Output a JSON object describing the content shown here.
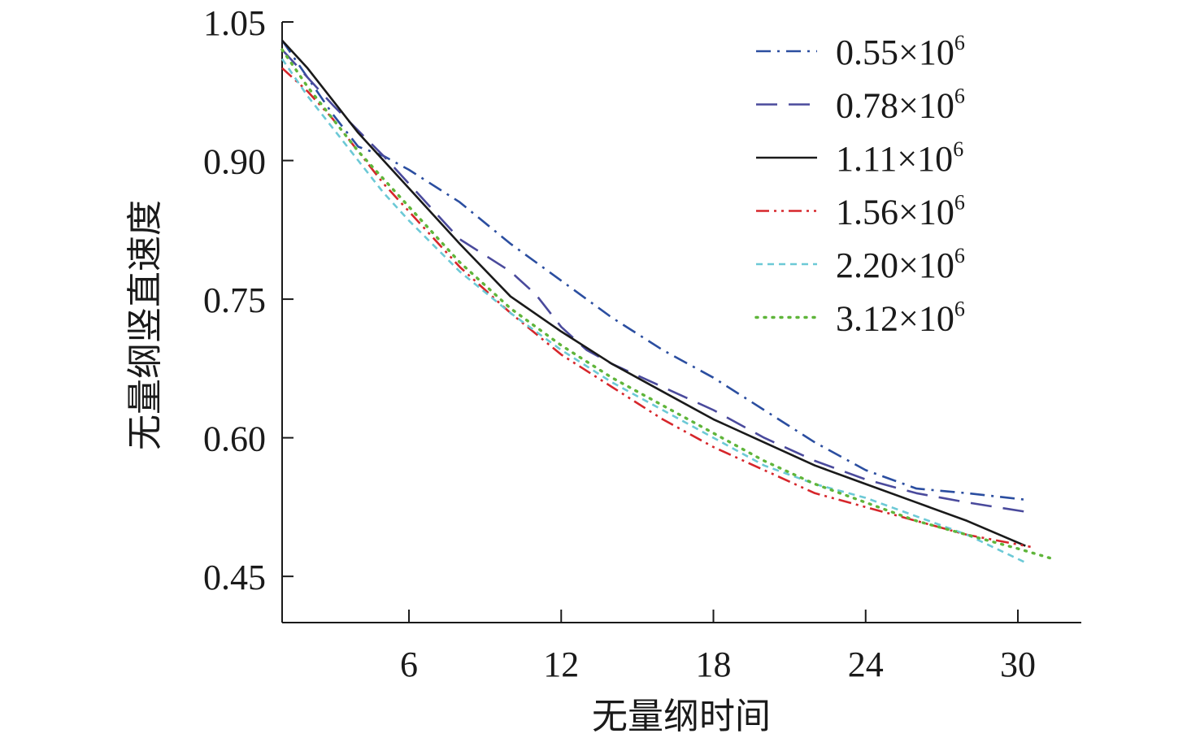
{
  "chart_data": {
    "type": "line",
    "title": "",
    "xlabel": "无量纲时间",
    "ylabel": "无量纲竖直速度",
    "xlim": [
      1,
      32.5
    ],
    "ylim": [
      0.4,
      1.05
    ],
    "xticks": [
      6,
      12,
      18,
      24,
      30
    ],
    "xtick_labels": [
      "6",
      "12",
      "18",
      "24",
      "30"
    ],
    "yticks": [
      0.45,
      0.6,
      0.75,
      0.9,
      1.05
    ],
    "ytick_labels": [
      "0.45",
      "0.60",
      "0.75",
      "0.90",
      "1.05"
    ],
    "grid": false,
    "legend_position": "top-right",
    "series": [
      {
        "name": "0.55×10⁶",
        "label_base": "0.55×10",
        "label_exp": "6",
        "color": "#2b4ea0",
        "style": "dashdot",
        "x": [
          1.0,
          3.0,
          4.0,
          5.0,
          6.0,
          8.0,
          10.0,
          12.0,
          14.0,
          16.0,
          18.0,
          20.0,
          22.0,
          24.0,
          26.0,
          28.0,
          30.3
        ],
        "y": [
          1.03,
          0.95,
          0.915,
          0.905,
          0.89,
          0.855,
          0.81,
          0.77,
          0.73,
          0.695,
          0.665,
          0.63,
          0.595,
          0.565,
          0.545,
          0.54,
          0.533
        ]
      },
      {
        "name": "0.78×10⁶",
        "label_base": "0.78×10",
        "label_exp": "6",
        "color": "#4a4a9c",
        "style": "dashed",
        "x": [
          1.0,
          3.0,
          5.0,
          6.0,
          8.0,
          10.0,
          11.0,
          12.0,
          13.0,
          14.0,
          16.0,
          18.0,
          20.0,
          22.0,
          24.0,
          26.0,
          28.0,
          30.3
        ],
        "y": [
          1.02,
          0.96,
          0.905,
          0.875,
          0.815,
          0.78,
          0.755,
          0.72,
          0.695,
          0.68,
          0.655,
          0.63,
          0.6,
          0.575,
          0.555,
          0.54,
          0.53,
          0.52
        ]
      },
      {
        "name": "1.11×10⁶",
        "label_base": "1.11×10",
        "label_exp": "6",
        "color": "#1a1a1a",
        "style": "solid",
        "x": [
          1.0,
          2.0,
          4.0,
          6.0,
          8.0,
          10.0,
          12.0,
          14.0,
          16.0,
          18.0,
          20.0,
          22.0,
          24.0,
          26.0,
          28.0,
          30.3
        ],
        "y": [
          1.03,
          1.0,
          0.93,
          0.87,
          0.81,
          0.753,
          0.715,
          0.68,
          0.65,
          0.62,
          0.595,
          0.57,
          0.55,
          0.53,
          0.51,
          0.483
        ]
      },
      {
        "name": "1.56×10⁶",
        "label_base": "1.56×10",
        "label_exp": "6",
        "color": "#d6262b",
        "style": "dashdotdot",
        "x": [
          1.0,
          2.0,
          3.0,
          4.0,
          5.0,
          6.0,
          8.0,
          10.0,
          12.0,
          14.0,
          16.0,
          18.0,
          20.0,
          22.0,
          24.0,
          26.0,
          28.0,
          30.5
        ],
        "y": [
          1.0,
          0.975,
          0.945,
          0.91,
          0.875,
          0.845,
          0.785,
          0.735,
          0.69,
          0.655,
          0.62,
          0.59,
          0.565,
          0.54,
          0.525,
          0.51,
          0.495,
          0.482
        ]
      },
      {
        "name": "2.20×10⁶",
        "label_base": "2.20×10",
        "label_exp": "6",
        "color": "#6cc9d6",
        "style": "shortdash",
        "x": [
          1.0,
          2.0,
          3.0,
          4.0,
          5.0,
          6.0,
          8.0,
          10.0,
          12.0,
          14.0,
          16.0,
          18.0,
          20.0,
          22.0,
          24.0,
          26.0,
          28.0,
          30.3
        ],
        "y": [
          1.01,
          0.97,
          0.935,
          0.9,
          0.865,
          0.835,
          0.78,
          0.735,
          0.695,
          0.66,
          0.63,
          0.6,
          0.57,
          0.55,
          0.535,
          0.515,
          0.495,
          0.465
        ]
      },
      {
        "name": "3.12×10⁶",
        "label_base": "3.12×10",
        "label_exp": "6",
        "color": "#5fb53a",
        "style": "dotted",
        "x": [
          1.0,
          2.0,
          3.0,
          4.0,
          5.0,
          6.0,
          8.0,
          10.0,
          12.0,
          14.0,
          16.0,
          18.0,
          20.0,
          22.0,
          24.0,
          26.0,
          28.0,
          30.0,
          31.5
        ],
        "y": [
          1.02,
          0.98,
          0.945,
          0.91,
          0.88,
          0.85,
          0.79,
          0.74,
          0.7,
          0.665,
          0.635,
          0.605,
          0.575,
          0.55,
          0.53,
          0.51,
          0.495,
          0.48,
          0.468
        ]
      }
    ]
  }
}
